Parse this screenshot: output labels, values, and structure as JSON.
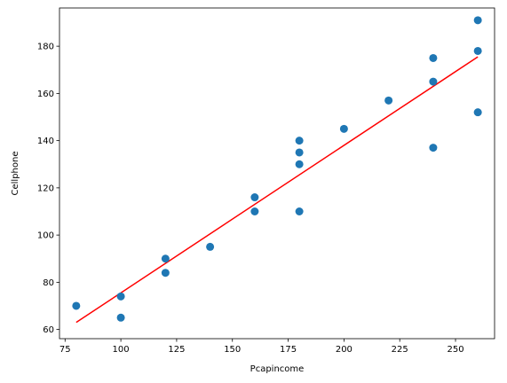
{
  "chart_data": {
    "type": "scatter",
    "title": "",
    "xlabel": "Pcapincome",
    "ylabel": "Cellphone",
    "xlim": [
      72.5,
      267.5
    ],
    "ylim": [
      56.1,
      196.2
    ],
    "xticks": [
      75,
      100,
      125,
      150,
      175,
      200,
      225,
      250
    ],
    "yticks": [
      60,
      80,
      100,
      120,
      140,
      160,
      180
    ],
    "grid": false,
    "colors": {
      "points": "#1f77b4",
      "fit_line": "#ff0000"
    },
    "series": [
      {
        "kind": "scatter",
        "points": [
          [
            80,
            70
          ],
          [
            100,
            74
          ],
          [
            100,
            65
          ],
          [
            120,
            90
          ],
          [
            120,
            84
          ],
          [
            140,
            95
          ],
          [
            160,
            116
          ],
          [
            160,
            110
          ],
          [
            180,
            140
          ],
          [
            180,
            135
          ],
          [
            180,
            130
          ],
          [
            180,
            110
          ],
          [
            200,
            145
          ],
          [
            220,
            157
          ],
          [
            240,
            175
          ],
          [
            240,
            165
          ],
          [
            240,
            137
          ],
          [
            260,
            191
          ],
          [
            260,
            178
          ],
          [
            260,
            152
          ]
        ]
      },
      {
        "kind": "line",
        "points": [
          [
            80,
            63
          ],
          [
            260,
            175.5
          ]
        ]
      }
    ]
  }
}
